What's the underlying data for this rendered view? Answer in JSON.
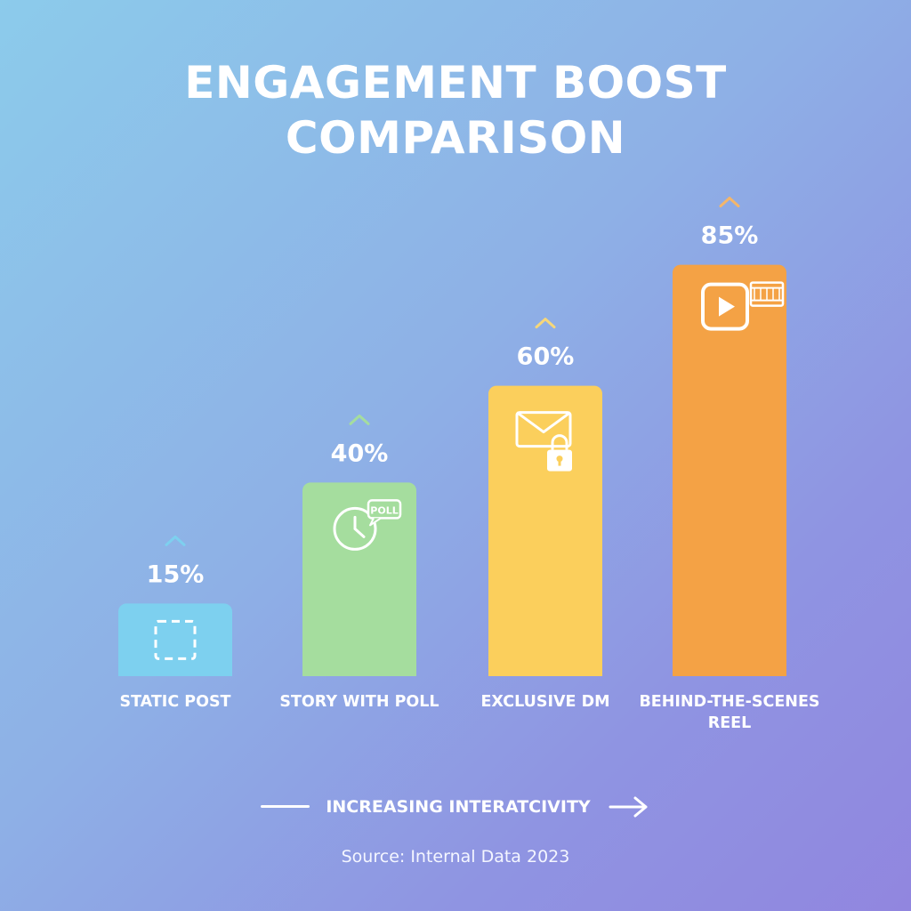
{
  "title_lines": [
    "ENGAGEMENT BOOST",
    "COMPARISON"
  ],
  "chart_data": {
    "type": "bar",
    "title": "ENGAGEMENT BOOST COMPARISON",
    "categories": [
      [
        "STATIC POST"
      ],
      [
        "STORY WITH POLL"
      ],
      [
        "EXCLUSIVE DM"
      ],
      [
        "BEHIND-THE-SCENES",
        "REEL"
      ]
    ],
    "values": [
      15,
      40,
      60,
      85
    ],
    "value_labels": [
      "15%",
      "40%",
      "60%",
      "85%"
    ],
    "ylim": [
      0,
      100
    ],
    "grid": false,
    "legend": "none",
    "colors": [
      "#7dd0ef",
      "#a5dd9e",
      "#fbcf5c",
      "#f4a245"
    ],
    "caret_colors": [
      "#7dd0ef",
      "#a5dd9e",
      "#f6d77a",
      "#f4b66a"
    ],
    "icons": [
      "dashed-frame-icon",
      "clock-poll-icon",
      "envelope-lock-icon",
      "play-film-icon"
    ],
    "icon_texts": [
      "",
      "POLL",
      "",
      ""
    ]
  },
  "axis_note": "INCREASING INTERATCIVITY",
  "source": "Source: Internal Data 2023"
}
